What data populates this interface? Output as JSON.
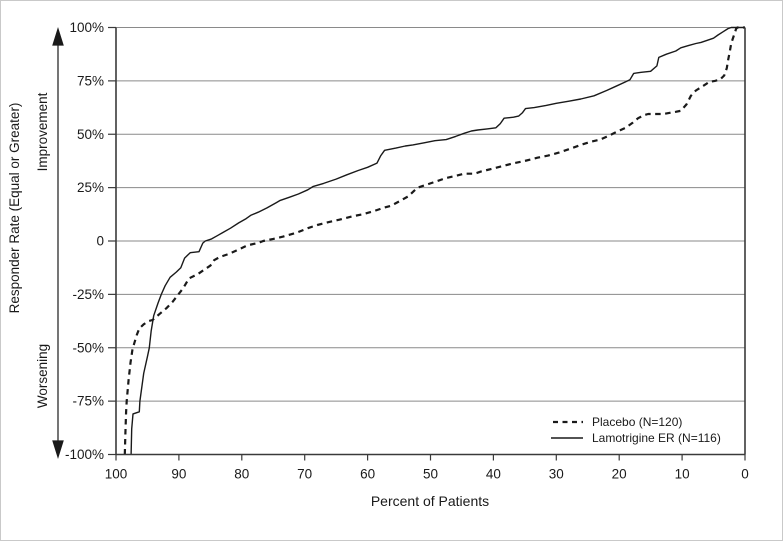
{
  "chart_data": {
    "type": "line",
    "title": "",
    "xlabel": "Percent of Patients",
    "ylabel": "Responder Rate (Equal or Greater)",
    "ylabel_upper": "Improvement",
    "ylabel_lower": "Worsening",
    "x_ticks": [
      100,
      90,
      80,
      70,
      60,
      50,
      40,
      30,
      20,
      10,
      0
    ],
    "x_axis_reversed": true,
    "xlim": [
      100,
      0
    ],
    "ylim": [
      -100,
      100
    ],
    "y_ticks": [
      {
        "value": 100,
        "label": "100%"
      },
      {
        "value": 75,
        "label": "75%"
      },
      {
        "value": 50,
        "label": "50%"
      },
      {
        "value": 25,
        "label": "25%"
      },
      {
        "value": 0,
        "label": "0"
      },
      {
        "value": -25,
        "label": "-25%"
      },
      {
        "value": -50,
        "label": "-50%"
      },
      {
        "value": -75,
        "label": "-75%"
      },
      {
        "value": -100,
        "label": "-100%"
      }
    ],
    "grid": true,
    "legend_position": "inside-lower-right",
    "line_color": "#1a1a1a",
    "series": [
      {
        "name": "Placebo (N=120)",
        "style": "dashed",
        "points": [
          [
            98.6,
            -100
          ],
          [
            98.5,
            -90
          ],
          [
            98.4,
            -80
          ],
          [
            98.3,
            -75
          ],
          [
            98.0,
            -65
          ],
          [
            97.7,
            -57
          ],
          [
            97.4,
            -51
          ],
          [
            97.1,
            -48
          ],
          [
            96.7,
            -44
          ],
          [
            96.3,
            -41
          ],
          [
            95.6,
            -39
          ],
          [
            94.8,
            -37.5
          ],
          [
            94.2,
            -37
          ],
          [
            93.0,
            -34
          ],
          [
            92.0,
            -31.5
          ],
          [
            91.0,
            -28.5
          ],
          [
            90.2,
            -25.5
          ],
          [
            89.3,
            -22
          ],
          [
            88.4,
            -17.5
          ],
          [
            87.0,
            -15.5
          ],
          [
            86.0,
            -13.5
          ],
          [
            85.0,
            -11.5
          ],
          [
            84.4,
            -9
          ],
          [
            83.5,
            -7.5
          ],
          [
            82.0,
            -6
          ],
          [
            80.5,
            -4
          ],
          [
            79.1,
            -2
          ],
          [
            77.5,
            -1
          ],
          [
            76.6,
            0
          ],
          [
            75.0,
            1
          ],
          [
            73.5,
            2
          ],
          [
            71.2,
            4
          ],
          [
            69.5,
            6
          ],
          [
            68.0,
            7.5
          ],
          [
            66.0,
            9
          ],
          [
            64.5,
            10
          ],
          [
            62.5,
            11.5
          ],
          [
            60.8,
            12.5
          ],
          [
            59.0,
            14
          ],
          [
            57.5,
            15.5
          ],
          [
            56.3,
            16.5
          ],
          [
            55.0,
            18.5
          ],
          [
            53.5,
            21
          ],
          [
            52.6,
            23.5
          ],
          [
            52.0,
            25
          ],
          [
            50.5,
            26.5
          ],
          [
            49.0,
            28
          ],
          [
            47.5,
            29.5
          ],
          [
            46.0,
            30.5
          ],
          [
            44.7,
            31.5
          ],
          [
            43.0,
            31.5
          ],
          [
            42.0,
            32.5
          ],
          [
            40.0,
            34
          ],
          [
            38.0,
            35.5
          ],
          [
            36.7,
            36.5
          ],
          [
            35.0,
            37.5
          ],
          [
            33.0,
            39
          ],
          [
            31.3,
            40
          ],
          [
            29.5,
            41.5
          ],
          [
            28.0,
            43
          ],
          [
            26.1,
            45
          ],
          [
            24.5,
            46.5
          ],
          [
            23.0,
            47.5
          ],
          [
            21.5,
            49.5
          ],
          [
            20.5,
            51
          ],
          [
            19.0,
            53
          ],
          [
            17.8,
            55.5
          ],
          [
            17.0,
            57.5
          ],
          [
            16.0,
            59
          ],
          [
            15.4,
            59.5
          ],
          [
            13.0,
            59.5
          ],
          [
            11.0,
            60.5
          ],
          [
            10.2,
            61
          ],
          [
            9.3,
            64
          ],
          [
            8.6,
            68
          ],
          [
            7.8,
            70.5
          ],
          [
            7.0,
            72
          ],
          [
            6.2,
            73.5
          ],
          [
            5.7,
            74.5
          ],
          [
            4.8,
            75
          ],
          [
            4.0,
            75.5
          ],
          [
            3.3,
            77.5
          ],
          [
            2.9,
            81
          ],
          [
            2.7,
            84.5
          ],
          [
            2.4,
            89
          ],
          [
            2.2,
            92.5
          ],
          [
            1.8,
            96
          ],
          [
            1.4,
            99.5
          ],
          [
            1.2,
            100
          ],
          [
            0,
            100
          ]
        ]
      },
      {
        "name": "Lamotrigine ER (N=116)",
        "style": "solid",
        "points": [
          [
            97.6,
            -100
          ],
          [
            97.5,
            -88
          ],
          [
            97.3,
            -81
          ],
          [
            96.3,
            -80
          ],
          [
            96.2,
            -75
          ],
          [
            95.6,
            -62
          ],
          [
            95.0,
            -54
          ],
          [
            94.7,
            -50
          ],
          [
            94.4,
            -42
          ],
          [
            94.0,
            -35
          ],
          [
            93.3,
            -29
          ],
          [
            92.8,
            -25
          ],
          [
            92.2,
            -21
          ],
          [
            91.4,
            -17
          ],
          [
            90.4,
            -14.5
          ],
          [
            89.7,
            -12.5
          ],
          [
            89.1,
            -8
          ],
          [
            88.2,
            -5.5
          ],
          [
            86.8,
            -5
          ],
          [
            86.2,
            -1
          ],
          [
            85.8,
            0
          ],
          [
            84.8,
            1
          ],
          [
            83.9,
            2.5
          ],
          [
            83.0,
            4
          ],
          [
            81.8,
            6
          ],
          [
            80.5,
            8.5
          ],
          [
            79.3,
            10.5
          ],
          [
            78.6,
            12
          ],
          [
            77.4,
            13.5
          ],
          [
            76.0,
            15.5
          ],
          [
            74.5,
            18
          ],
          [
            73.9,
            19
          ],
          [
            72.4,
            20.5
          ],
          [
            71.0,
            22
          ],
          [
            69.5,
            24
          ],
          [
            68.7,
            25.5
          ],
          [
            67.0,
            27
          ],
          [
            65.0,
            29
          ],
          [
            63.3,
            31
          ],
          [
            61.5,
            33
          ],
          [
            60.0,
            34.5
          ],
          [
            58.5,
            36.5
          ],
          [
            57.9,
            40
          ],
          [
            57.3,
            42.5
          ],
          [
            55.5,
            43.5
          ],
          [
            54.0,
            44.5
          ],
          [
            52.8,
            45
          ],
          [
            51.0,
            46
          ],
          [
            49.3,
            47
          ],
          [
            47.5,
            47.5
          ],
          [
            46.0,
            49
          ],
          [
            44.6,
            50.5
          ],
          [
            43.5,
            51.5
          ],
          [
            42.5,
            52
          ],
          [
            41.0,
            52.5
          ],
          [
            39.6,
            53
          ],
          [
            38.9,
            55
          ],
          [
            38.3,
            57.5
          ],
          [
            36.8,
            58
          ],
          [
            36.0,
            58.5
          ],
          [
            35.4,
            60
          ],
          [
            34.9,
            62
          ],
          [
            33.5,
            62.5
          ],
          [
            31.6,
            63.5
          ],
          [
            30.0,
            64.5
          ],
          [
            28.0,
            65.5
          ],
          [
            26.1,
            66.5
          ],
          [
            24.0,
            68
          ],
          [
            22.0,
            70.5
          ],
          [
            20.5,
            72.5
          ],
          [
            19.0,
            74.5
          ],
          [
            18.3,
            75.5
          ],
          [
            17.7,
            78.5
          ],
          [
            16.5,
            79
          ],
          [
            15.0,
            79.5
          ],
          [
            14.0,
            82
          ],
          [
            13.7,
            86
          ],
          [
            12.5,
            87.5
          ],
          [
            11.0,
            89
          ],
          [
            10.2,
            90.5
          ],
          [
            9.0,
            91.5
          ],
          [
            7.8,
            92.5
          ],
          [
            7.0,
            93
          ],
          [
            6.0,
            94
          ],
          [
            5.0,
            95
          ],
          [
            4.3,
            96.5
          ],
          [
            3.5,
            98
          ],
          [
            2.7,
            99.5
          ],
          [
            2.2,
            100
          ],
          [
            0,
            100
          ]
        ]
      }
    ]
  }
}
